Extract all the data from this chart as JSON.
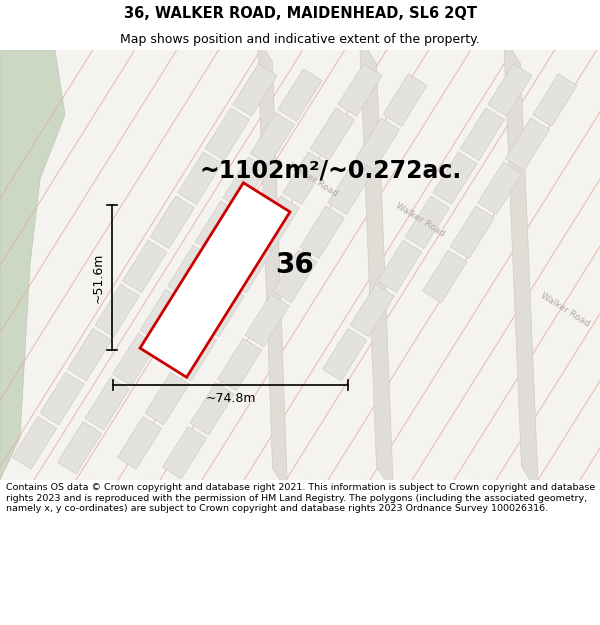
{
  "title": "36, WALKER ROAD, MAIDENHEAD, SL6 2QT",
  "subtitle": "Map shows position and indicative extent of the property.",
  "area_text": "~1102m²/~0.272ac.",
  "label_number": "36",
  "dim_width": "~74.8m",
  "dim_height": "~51.6m",
  "footnote": "Contains OS data © Crown copyright and database right 2021. This information is subject to Crown copyright and database rights 2023 and is reproduced with the permission of HM Land Registry. The polygons (including the associated geometry, namely x, y co-ordinates) are subject to Crown copyright and database rights 2023 Ordnance Survey 100026316.",
  "map_bg": "#f5f3f0",
  "road_color": "#e0dcd6",
  "road_edge_color": "#d0ccc6",
  "parcel_line_color": "#e8aaaa",
  "green_area_color": "#ccd8c4",
  "green_edge_color": "#bbc8b2",
  "highlight_color": "#cc0000",
  "road_label_color": "#b0a8a0",
  "grey_plot_fill": "#e4e2de",
  "grey_plot_edge": "#d0ccc8",
  "title_fontsize": 10.5,
  "subtitle_fontsize": 9,
  "footnote_fontsize": 6.8,
  "fig_width": 6.0,
  "fig_height": 6.25
}
